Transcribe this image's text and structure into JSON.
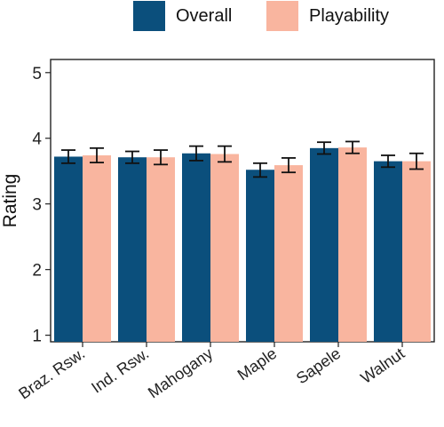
{
  "chart_data": {
    "type": "bar",
    "title": "",
    "xlabel": "",
    "ylabel": "Rating",
    "ylim": [
      0.9,
      5.2
    ],
    "yticks": [
      1,
      2,
      3,
      4,
      5
    ],
    "categories": [
      "Braz. Rsw.",
      "Ind. Rsw.",
      "Mahogany",
      "Maple",
      "Sapele",
      "Walnut"
    ],
    "series": [
      {
        "name": "Overall",
        "color": "#0b4f7c",
        "values": [
          3.72,
          3.71,
          3.77,
          3.52,
          3.85,
          3.65
        ],
        "error_low": [
          3.62,
          3.62,
          3.66,
          3.41,
          3.76,
          3.56
        ],
        "error_high": [
          3.82,
          3.8,
          3.88,
          3.62,
          3.94,
          3.74
        ]
      },
      {
        "name": "Playability",
        "color": "#f9b59f",
        "values": [
          3.74,
          3.71,
          3.76,
          3.59,
          3.86,
          3.65
        ],
        "error_low": [
          3.63,
          3.6,
          3.64,
          3.48,
          3.77,
          3.53
        ],
        "error_high": [
          3.85,
          3.82,
          3.88,
          3.7,
          3.95,
          3.77
        ]
      }
    ],
    "grid": false,
    "legend_position": "top-center"
  }
}
